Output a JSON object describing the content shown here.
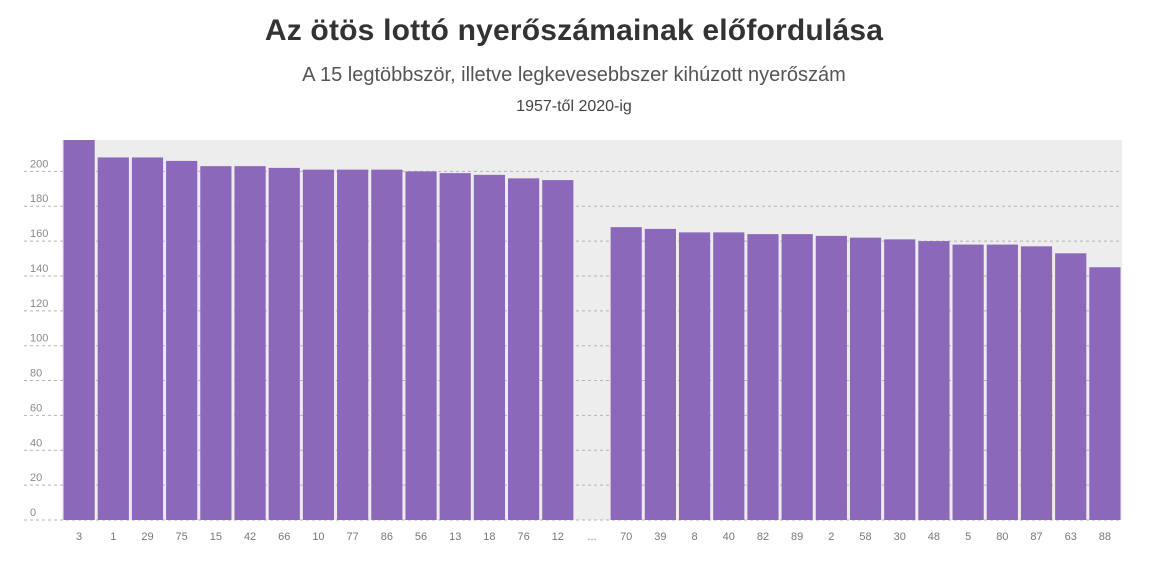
{
  "header": {
    "title": "Az ötös lottó nyerőszámainak előfordulása",
    "subtitle": "A 15 legtöbbször, illetve legkevesebbszer kihúzott nyerőszám",
    "period": "1957-től 2020-ig"
  },
  "colors": {
    "bar": "#8c68ba",
    "plot_background": "#ededed",
    "grid": "#b4b4b4"
  },
  "chart_data": {
    "type": "bar",
    "title": "Az ötös lottó nyerőszámainak előfordulása",
    "subtitle": "A 15 legtöbbször, illetve legkevesebbszer kihúzott nyerőszám",
    "xlabel": "",
    "ylabel": "",
    "ylim": [
      0,
      218
    ],
    "yticks": [
      0,
      20,
      40,
      60,
      80,
      100,
      120,
      140,
      160,
      180,
      200
    ],
    "grid": true,
    "categories": [
      "3",
      "1",
      "29",
      "75",
      "15",
      "42",
      "66",
      "10",
      "77",
      "86",
      "56",
      "13",
      "18",
      "76",
      "12",
      "...",
      "70",
      "39",
      "8",
      "40",
      "82",
      "89",
      "2",
      "58",
      "30",
      "48",
      "5",
      "80",
      "87",
      "63",
      "88"
    ],
    "values": [
      218,
      208,
      208,
      206,
      203,
      203,
      202,
      201,
      201,
      201,
      200,
      199,
      198,
      196,
      195,
      null,
      168,
      167,
      165,
      165,
      164,
      164,
      163,
      162,
      161,
      160,
      158,
      158,
      157,
      153,
      145
    ]
  }
}
